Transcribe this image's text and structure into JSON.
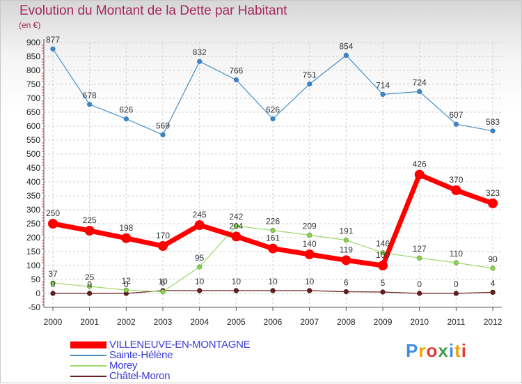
{
  "chart_data": {
    "type": "line",
    "title": "Evolution du Montant de la Dette par Habitant",
    "unit": "(en €)",
    "x": [
      "2000",
      "2001",
      "2002",
      "2003",
      "2004",
      "2005",
      "2006",
      "2007",
      "2008",
      "2009",
      "2010",
      "2011",
      "2012"
    ],
    "ylim": [
      -50,
      900
    ],
    "yticks": [
      -50,
      0,
      50,
      100,
      150,
      200,
      250,
      300,
      350,
      400,
      450,
      500,
      550,
      600,
      650,
      700,
      750,
      800,
      850,
      900
    ],
    "grid": "horizontal dashed",
    "legend_position": "bottom-left",
    "series": [
      {
        "name": "VILLENEUVE-EN-MONTAGNE",
        "color": "#ff0000",
        "values": [
          250,
          225,
          198,
          170,
          245,
          204,
          161,
          140,
          119,
          100,
          426,
          370,
          323
        ]
      },
      {
        "name": "Sainte-Hélène",
        "color": "#4a90c8",
        "values": [
          877,
          678,
          626,
          569,
          832,
          766,
          626,
          751,
          854,
          714,
          724,
          607,
          583
        ]
      },
      {
        "name": "Morey",
        "color": "#9dd86a",
        "values": [
          37,
          25,
          12,
          6,
          95,
          242,
          226,
          209,
          191,
          146,
          127,
          110,
          90
        ]
      },
      {
        "name": "Châtel-Moron",
        "color": "#6b1e1e",
        "values": [
          0,
          0,
          0,
          10,
          10,
          10,
          10,
          10,
          6,
          5,
          0,
          0,
          4
        ]
      }
    ]
  }
}
